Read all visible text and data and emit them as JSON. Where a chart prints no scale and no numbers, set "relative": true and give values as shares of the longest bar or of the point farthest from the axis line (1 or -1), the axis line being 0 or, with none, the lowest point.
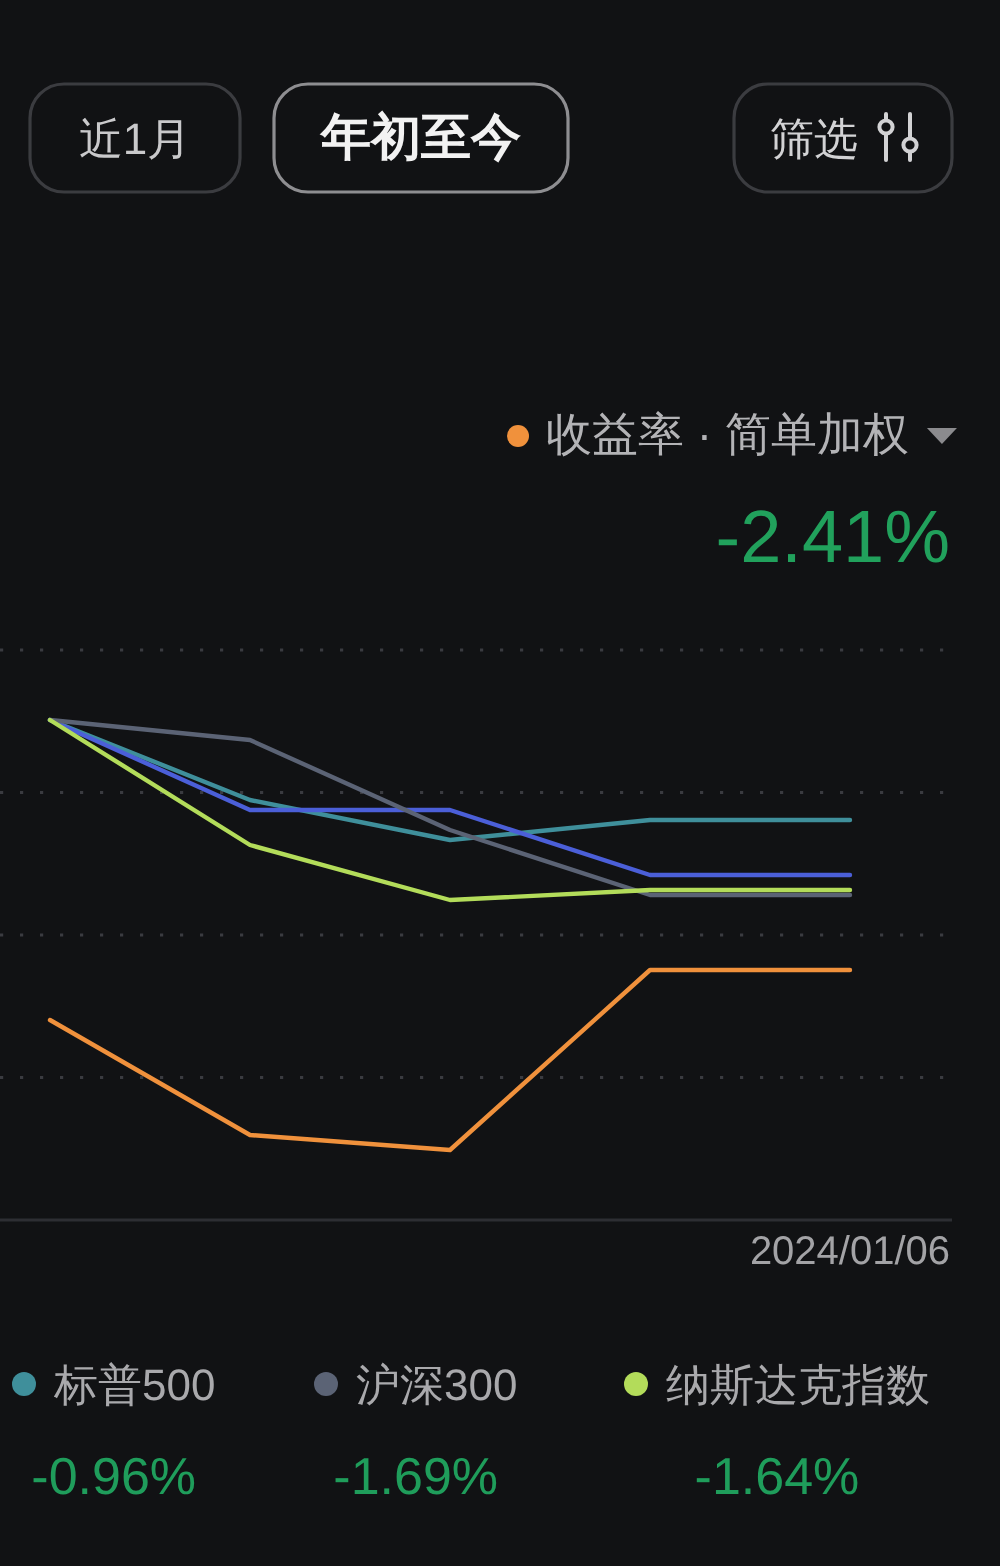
{
  "chart_data": {
    "type": "line",
    "relative": true,
    "categories": [
      null,
      null,
      null,
      null,
      null
    ],
    "grid": "y",
    "legend": "bottom",
    "series": [
      {
        "color": "#f0913c",
        "values": [
          0.4,
          0.17,
          0.14,
          0.5,
          0.5
        ]
      },
      {
        "name": "标普500",
        "color": "#3f8f9b",
        "values": [
          1,
          0.84,
          0.76,
          0.8,
          0.8
        ]
      },
      {
        "color": "#4b5fd8",
        "values": [
          1,
          0.82,
          0.82,
          0.69,
          0.69
        ]
      },
      {
        "name": "沪深300",
        "color": "#5b6375",
        "values": [
          1,
          0.96,
          0.78,
          0.65,
          0.65
        ]
      },
      {
        "name": "纳斯达克指数",
        "color": "#b3dc5a",
        "values": [
          1,
          0.75,
          0.64,
          0.66,
          0.66
        ]
      }
    ],
    "annotations": [
      "近1月",
      "年初至今",
      "筛选",
      "收益率 · 简单加权",
      "-2.41%",
      "-0.96%",
      "-1.69%",
      "-1.64%",
      "2024/01/06"
    ]
  }
}
